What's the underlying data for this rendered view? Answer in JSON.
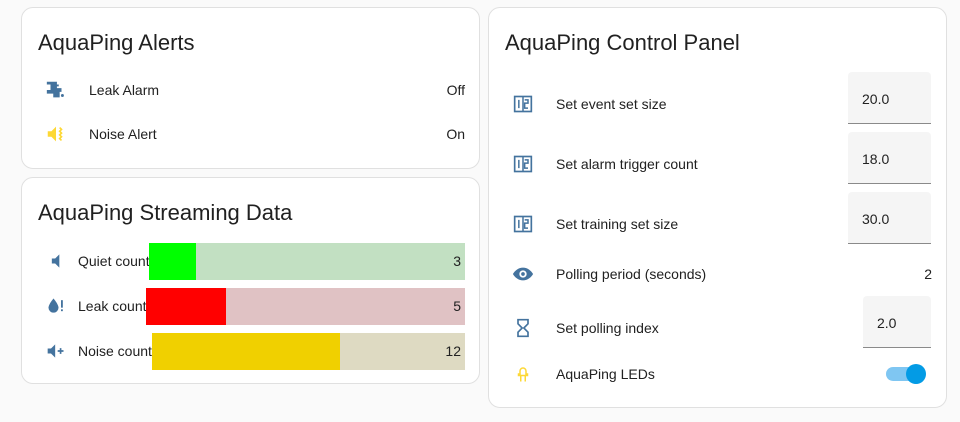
{
  "alerts": {
    "title": "AquaPing Alerts",
    "items": [
      {
        "label": "Leak Alarm",
        "value": "Off",
        "icon": "pipe-leak-icon",
        "color": "#44739e"
      },
      {
        "label": "Noise Alert",
        "value": "On",
        "icon": "volume-vibrate-icon",
        "color": "#fdd835"
      }
    ]
  },
  "streaming": {
    "title": "AquaPing Streaming Data",
    "max": 20,
    "items": [
      {
        "label": "Quiet count",
        "value": "3",
        "num": 3,
        "icon": "volume-low-icon",
        "color": "#00ff00",
        "bg": "#c2e0c2"
      },
      {
        "label": "Leak count",
        "value": "5",
        "num": 5,
        "icon": "water-alert-icon",
        "color": "#ff0000",
        "bg": "#e0c2c4"
      },
      {
        "label": "Noise count",
        "value": "12",
        "num": 12,
        "icon": "volume-plus-icon",
        "color": "#f0d000",
        "bg": "#dedac2"
      }
    ]
  },
  "control": {
    "title": "AquaPing Control Panel",
    "items": [
      {
        "label": "Set event set size",
        "value": "20.0",
        "type": "input",
        "icon": "numeric-box-icon"
      },
      {
        "label": "Set alarm trigger count",
        "value": "18.0",
        "type": "input",
        "icon": "numeric-box-icon"
      },
      {
        "label": "Set training set size",
        "value": "30.0",
        "type": "input",
        "icon": "numeric-box-icon"
      },
      {
        "label": "Polling period (seconds)",
        "value": "2",
        "type": "text",
        "icon": "eye-icon"
      },
      {
        "label": "Set polling index",
        "value": "2.0",
        "type": "input",
        "icon": "hourglass-icon"
      },
      {
        "label": "AquaPing LEDs",
        "type": "toggle",
        "on": true,
        "icon": "led-on-icon"
      }
    ]
  },
  "colors": {
    "icon": "#44739e",
    "accent": "#039be5"
  }
}
